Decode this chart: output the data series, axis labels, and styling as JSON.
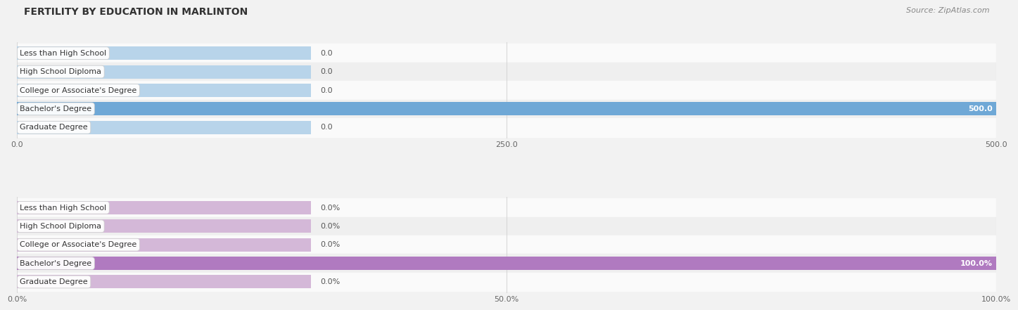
{
  "title": "FERTILITY BY EDUCATION IN MARLINTON",
  "source": "Source: ZipAtlas.com",
  "categories": [
    "Less than High School",
    "High School Diploma",
    "College or Associate's Degree",
    "Bachelor's Degree",
    "Graduate Degree"
  ],
  "values_count": [
    0.0,
    0.0,
    0.0,
    500.0,
    0.0
  ],
  "values_pct": [
    0.0,
    0.0,
    0.0,
    100.0,
    0.0
  ],
  "xlim_count": [
    0,
    500
  ],
  "xlim_pct": [
    0,
    100
  ],
  "xticks_count": [
    0.0,
    250.0,
    500.0
  ],
  "xticks_pct": [
    0.0,
    50.0,
    100.0
  ],
  "xtick_labels_count": [
    "0.0",
    "250.0",
    "500.0"
  ],
  "xtick_labels_pct": [
    "0.0%",
    "50.0%",
    "100.0%"
  ],
  "bar_color_normal": "#b8d4ea",
  "bar_color_highlight": "#6fa8d6",
  "bar_color_pct_normal": "#d4b8d8",
  "bar_color_pct_highlight": "#b07ac0",
  "bg_color": "#f2f2f2",
  "row_bg_light": "#fafafa",
  "row_bg_mid": "#efefef",
  "grid_color": "#d8d8d8",
  "title_fontsize": 10,
  "source_fontsize": 8,
  "label_fontsize": 8,
  "value_fontsize": 8,
  "tick_fontsize": 8,
  "bar_height": 0.72,
  "fig_width": 14.06,
  "fig_height": 4.76
}
